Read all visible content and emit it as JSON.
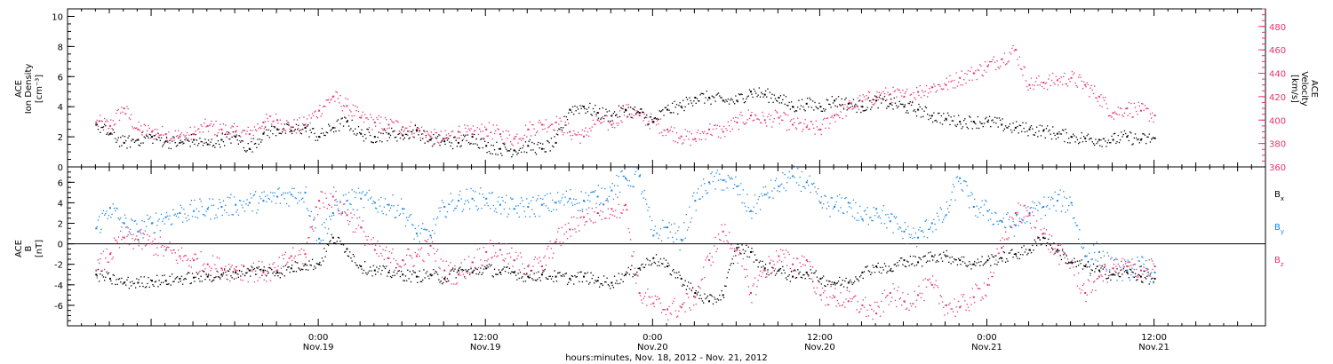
{
  "colors": {
    "ink": "#000000",
    "velocity": "#e8336d",
    "by": "#1c86e6",
    "bz": "#e8336d"
  },
  "chart_data": [
    {
      "type": "scatter",
      "panel": "top",
      "ylabel_left": [
        "ACE",
        "Ion Density",
        "[cm⁻³]"
      ],
      "ylabel_right": [
        "ACE",
        "Velocity",
        "[km/s]"
      ],
      "ylim_left": [
        0,
        10.5
      ],
      "yticks_left": [
        "0",
        "2",
        "4",
        "6",
        "8",
        "10"
      ],
      "ylim_right": [
        360,
        495
      ],
      "yticks_right": [
        "360",
        "380",
        "400",
        "420",
        "440",
        "460",
        "480"
      ],
      "grid": false,
      "series": [
        {
          "axis": "left",
          "color": "#000000",
          "hours": [
            -16,
            -15,
            -14,
            -13,
            -12,
            -11,
            -10,
            -9,
            -8,
            -7,
            -6,
            -5,
            -4,
            -3,
            -2,
            -1,
            0,
            1,
            2,
            3,
            4,
            5,
            6,
            7,
            8,
            9,
            10,
            11,
            12,
            13,
            14,
            15,
            16,
            17,
            18,
            19,
            20,
            21,
            22,
            23,
            24,
            25,
            26,
            27,
            28,
            29,
            30,
            31,
            32,
            33,
            34,
            35,
            36,
            37,
            38,
            39,
            40,
            41,
            42,
            43,
            44,
            45,
            46,
            47,
            48,
            49,
            50,
            51,
            52,
            53,
            54,
            55,
            56,
            57,
            58,
            59,
            60
          ],
          "values": [
            2.8,
            2.2,
            1.6,
            1.8,
            2.0,
            1.7,
            1.6,
            1.8,
            1.5,
            1.8,
            2.0,
            1.2,
            2.2,
            2.5,
            2.4,
            2.6,
            2.0,
            2.6,
            3.0,
            2.2,
            2.0,
            2.2,
            2.1,
            2.4,
            1.8,
            1.7,
            1.6,
            2.0,
            1.4,
            1.2,
            1.1,
            1.4,
            1.2,
            1.6,
            3.8,
            4.0,
            3.6,
            3.4,
            3.8,
            3.6,
            3.0,
            3.8,
            4.0,
            4.6,
            4.6,
            4.4,
            4.4,
            5.0,
            4.8,
            4.6,
            4.0,
            4.2,
            4.0,
            4.4,
            4.2,
            4.0,
            4.4,
            4.2,
            4.0,
            3.8,
            3.4,
            3.2,
            3.0,
            3.0,
            3.0,
            2.8,
            2.6,
            2.5,
            2.4,
            2.2,
            2.0,
            1.9,
            1.8,
            1.8,
            2.0,
            1.8,
            1.9
          ]
        },
        {
          "axis": "right",
          "color": "#e8336d",
          "hours": [
            -16,
            -15,
            -14,
            -13,
            -12,
            -11,
            -10,
            -9,
            -8,
            -7,
            -6,
            -5,
            -4,
            -3,
            -2,
            -1,
            0,
            1,
            2,
            3,
            4,
            5,
            6,
            7,
            8,
            9,
            10,
            11,
            12,
            13,
            14,
            15,
            16,
            17,
            18,
            19,
            20,
            21,
            22,
            23,
            24,
            25,
            26,
            27,
            28,
            29,
            30,
            31,
            32,
            33,
            34,
            35,
            36,
            37,
            38,
            39,
            40,
            41,
            42,
            43,
            44,
            45,
            46,
            47,
            48,
            49,
            50,
            51,
            52,
            53,
            54,
            55,
            56,
            57,
            58,
            59,
            60
          ],
          "values": [
            398,
            395,
            410,
            392,
            390,
            388,
            386,
            388,
            395,
            392,
            390,
            388,
            398,
            400,
            394,
            396,
            408,
            420,
            412,
            402,
            398,
            396,
            394,
            392,
            386,
            384,
            390,
            388,
            392,
            388,
            384,
            392,
            396,
            398,
            390,
            386,
            400,
            396,
            408,
            404,
            398,
            392,
            386,
            384,
            392,
            390,
            398,
            404,
            400,
            402,
            396,
            394,
            392,
            404,
            410,
            416,
            420,
            422,
            420,
            424,
            428,
            430,
            436,
            440,
            446,
            452,
            460,
            430,
            432,
            434,
            436,
            430,
            420,
            406,
            410,
            408,
            404
          ]
        }
      ]
    },
    {
      "type": "scatter",
      "panel": "bottom",
      "ylabel": [
        "ACE",
        "B",
        "[nT]"
      ],
      "ylim": [
        -8,
        7.5
      ],
      "yticks": [
        "-6",
        "-4",
        "-2",
        "0",
        "2",
        "4",
        "6"
      ],
      "zero_line": true,
      "grid": false,
      "series": [
        {
          "name": "Bx",
          "color": "#000000",
          "hours": [
            -16,
            -15,
            -14,
            -13,
            -12,
            -11,
            -10,
            -9,
            -8,
            -7,
            -6,
            -5,
            -4,
            -3,
            -2,
            -1,
            0,
            1,
            2,
            3,
            4,
            5,
            6,
            7,
            8,
            9,
            10,
            11,
            12,
            13,
            14,
            15,
            16,
            17,
            18,
            19,
            20,
            21,
            22,
            23,
            24,
            25,
            26,
            27,
            28,
            29,
            30,
            31,
            32,
            33,
            34,
            35,
            36,
            37,
            38,
            39,
            40,
            41,
            42,
            43,
            44,
            45,
            46,
            47,
            48,
            49,
            50,
            51,
            52,
            53,
            54,
            55,
            56,
            57,
            58,
            59,
            60
          ],
          "values": [
            -3.0,
            -3.4,
            -3.8,
            -3.8,
            -3.6,
            -3.6,
            -3.4,
            -3.3,
            -3.2,
            -3.0,
            -2.8,
            -2.6,
            -2.6,
            -2.8,
            -2.4,
            -2.0,
            -2.0,
            0.6,
            -0.5,
            -2.2,
            -2.6,
            -2.8,
            -3.0,
            -3.2,
            -3.0,
            -3.4,
            -2.6,
            -2.8,
            -2.4,
            -2.8,
            -2.8,
            -3.2,
            -3.0,
            -3.2,
            -3.4,
            -3.2,
            -3.6,
            -3.8,
            -3.0,
            -2.4,
            -1.4,
            -2.2,
            -3.4,
            -4.8,
            -5.6,
            -5.0,
            -0.4,
            -0.8,
            -2.4,
            -2.6,
            -3.2,
            -2.8,
            -3.4,
            -3.8,
            -3.8,
            -2.8,
            -2.2,
            -2.6,
            -1.6,
            -1.8,
            -1.2,
            -1.2,
            -1.6,
            -2.0,
            -1.6,
            -1.4,
            -1.0,
            -0.6,
            0.6,
            -0.6,
            -1.8,
            -2.2,
            -2.6,
            -3.0,
            -2.8,
            -3.2,
            -3.4
          ]
        },
        {
          "name": "By",
          "color": "#1c86e6",
          "hours": [
            -16,
            -15,
            -14,
            -13,
            -12,
            -11,
            -10,
            -9,
            -8,
            -7,
            -6,
            -5,
            -4,
            -3,
            -2,
            -1,
            0,
            1,
            2,
            3,
            4,
            5,
            6,
            7,
            8,
            9,
            10,
            11,
            12,
            13,
            14,
            15,
            16,
            17,
            18,
            19,
            20,
            21,
            22,
            23,
            24,
            25,
            26,
            27,
            28,
            29,
            30,
            31,
            32,
            33,
            34,
            35,
            36,
            37,
            38,
            39,
            40,
            41,
            42,
            43,
            44,
            45,
            46,
            47,
            48,
            49,
            50,
            51,
            52,
            53,
            54,
            55,
            56,
            57,
            58,
            59,
            60
          ],
          "values": [
            1.5,
            3.5,
            2.0,
            1.2,
            2.0,
            2.6,
            3.0,
            3.2,
            3.4,
            3.6,
            3.8,
            4.0,
            4.2,
            4.6,
            4.8,
            5.0,
            0.5,
            3.0,
            4.2,
            4.4,
            4.0,
            3.8,
            3.4,
            1.0,
            0.8,
            3.6,
            4.2,
            4.4,
            4.4,
            3.8,
            3.4,
            3.6,
            3.8,
            4.0,
            4.4,
            4.2,
            4.6,
            5.2,
            6.4,
            6.6,
            0.8,
            1.6,
            0.4,
            4.2,
            6.0,
            6.2,
            5.6,
            3.2,
            4.8,
            5.6,
            6.6,
            6.0,
            4.0,
            3.6,
            4.0,
            2.4,
            3.4,
            2.2,
            1.2,
            0.6,
            2.0,
            2.8,
            6.4,
            3.6,
            3.2,
            2.2,
            1.8,
            3.0,
            3.6,
            4.2,
            4.0,
            -1.2,
            -0.8,
            -2.4,
            -2.6,
            -2.2,
            -2.8
          ]
        },
        {
          "name": "Bz",
          "color": "#e8336d",
          "hours": [
            -16,
            -15,
            -14,
            -13,
            -12,
            -11,
            -10,
            -9,
            -8,
            -7,
            -6,
            -5,
            -4,
            -3,
            -2,
            -1,
            0,
            1,
            2,
            3,
            4,
            5,
            6,
            7,
            8,
            9,
            10,
            11,
            12,
            13,
            14,
            15,
            16,
            17,
            18,
            19,
            20,
            21,
            22,
            23,
            24,
            25,
            26,
            27,
            28,
            29,
            30,
            31,
            32,
            33,
            34,
            35,
            36,
            37,
            38,
            39,
            40,
            41,
            42,
            43,
            44,
            45,
            46,
            47,
            48,
            49,
            50,
            51,
            52,
            53,
            54,
            55,
            56,
            57,
            58,
            59,
            60
          ],
          "values": [
            -2.6,
            -1.0,
            0.6,
            0.4,
            0.0,
            -0.6,
            -1.2,
            -1.6,
            -2.0,
            -2.4,
            -2.6,
            -2.6,
            -2.8,
            -2.6,
            -1.2,
            -1.0,
            4.2,
            4.6,
            2.8,
            1.6,
            -0.6,
            -1.4,
            -1.6,
            -1.2,
            -0.2,
            -2.6,
            -3.0,
            -1.8,
            -0.8,
            -0.6,
            -1.6,
            -2.2,
            -2.2,
            0.2,
            1.4,
            2.6,
            3.0,
            3.4,
            3.8,
            -4.8,
            -5.8,
            -6.4,
            -6.2,
            -5.2,
            -1.6,
            1.2,
            -0.6,
            -4.8,
            -2.6,
            -1.2,
            -2.0,
            -1.6,
            -5.0,
            -5.2,
            -5.6,
            -6.0,
            -6.8,
            -4.8,
            -5.6,
            -5.0,
            -4.0,
            -6.0,
            -6.2,
            -5.2,
            -4.0,
            -0.4,
            3.0,
            2.8,
            1.0,
            -0.8,
            -1.8,
            -4.8,
            -3.2,
            -2.4,
            -2.2,
            -2.6,
            -2.2
          ]
        }
      ],
      "legend": [
        {
          "base": "B",
          "sub": "x",
          "color": "#000000"
        },
        {
          "base": "B",
          "sub": "y",
          "color": "#1c86e6"
        },
        {
          "base": "B",
          "sub": "z",
          "color": "#e8336d"
        }
      ]
    }
  ],
  "x_axis": {
    "xlabel": "hours:minutes, Nov. 18, 2012 - Nov. 21, 2012",
    "range_hours": [
      -18,
      68
    ],
    "ticks": [
      {
        "hour": 0,
        "time": "0:00",
        "date": "Nov.19"
      },
      {
        "hour": 12,
        "time": "12:00",
        "date": "Nov.19"
      },
      {
        "hour": 24,
        "time": "0:00",
        "date": "Nov.20"
      },
      {
        "hour": 36,
        "time": "12:00",
        "date": "Nov.20"
      },
      {
        "hour": 48,
        "time": "0:00",
        "date": "Nov.21"
      },
      {
        "hour": 60,
        "time": "12:00",
        "date": "Nov.21"
      }
    ]
  }
}
